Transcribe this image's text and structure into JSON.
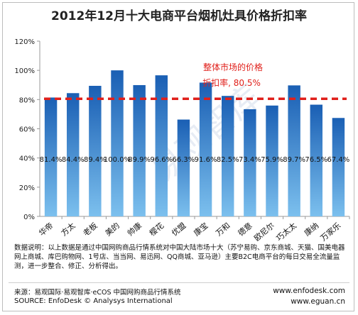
{
  "chart_data": {
    "type": "bar",
    "title": "2012年12月十大电商平台烟机灶具价格折扣率",
    "categories": [
      "华帝",
      "方太",
      "老板",
      "美的",
      "帅康",
      "樱花",
      "优盟",
      "康宝",
      "万和",
      "德意",
      "欧尼尔",
      "巧太太",
      "康纳",
      "万家乐"
    ],
    "values": [
      81.4,
      84.4,
      89.4,
      100.0,
      89.9,
      96.6,
      66.3,
      91.6,
      82.5,
      73.4,
      75.9,
      89.7,
      76.5,
      67.4
    ],
    "value_labels": [
      "81.4%",
      "84.4%",
      "89.4%",
      "100.0%",
      "89.9%",
      "96.6%",
      "66.3%",
      "91.6%",
      "82.5%",
      "73.4%",
      "75.9%",
      "89.7%",
      "76.5%",
      "67.4%"
    ],
    "ylim": [
      0,
      120
    ],
    "yticks": [
      0,
      20,
      40,
      60,
      80,
      100,
      120
    ],
    "ytick_labels": [
      "0%",
      "20%",
      "40%",
      "60%",
      "80%",
      "100%",
      "120%"
    ],
    "reference_line": {
      "value": 80.5,
      "label_line1": "整体市场的价格",
      "label_line2": "折扣率, 80.5%",
      "color": "#e0201b"
    },
    "bar_color_top": "#1a5fb4",
    "bar_color_bottom": "#7cc0ee",
    "grid": false
  },
  "notes": {
    "text": "数据说明：以上数据是通过中国网购商品行情系统对中国大陆市场十大（苏宁易购、京东商城、天猫、国美电器网上商城、库巴购物网、1号店、当当网、易迅网、QQ商城、亚马逊）主要B2C电商平台的每日交易全流量监测，进一步整合、修正、分析得出。"
  },
  "footer": {
    "source_cn": "来源：易观国际·易观智库·eCOS 中国网购商品行情系统",
    "source_en": "SOURCE: EnfoDesk © Analysys International",
    "site1": "www.enfodesk.com",
    "site2": "www.eguan.cn"
  },
  "watermark": "易观智库"
}
